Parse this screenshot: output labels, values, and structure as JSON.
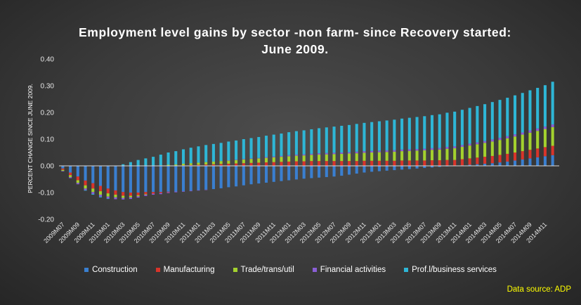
{
  "chart_data": {
    "type": "bar",
    "stacked": true,
    "title_line1": "Employment level gains by sector -non farm- since Recovery started:",
    "title_line2": "June 2009.",
    "ylabel": "PERCENT CHANGE SINCE JUNE 2009.",
    "ylim": [
      -0.2,
      0.4
    ],
    "yticks": [
      "0.40",
      "0.30",
      "0.20",
      "0.10",
      "0.00",
      "-0.10",
      "-0.20"
    ],
    "xtick_labels": [
      "2009M07",
      "2009M09",
      "2009M11",
      "2010M01",
      "2010M03",
      "2010M05",
      "2010M07",
      "2010M09",
      "2010M11",
      "2011M01",
      "2011M03",
      "2011M05",
      "2011M07",
      "2011M09",
      "2011M11",
      "2012M01",
      "2012M03",
      "2012M05",
      "2012M07",
      "2012M09",
      "2012M11",
      "2013M01",
      "2013M03",
      "2013M05",
      "2013M07",
      "2013M09",
      "2013M11",
      "2014M01",
      "2014M03",
      "2014M05",
      "2014M07",
      "2014M09",
      "2014M11"
    ],
    "categories": [
      "2009M07",
      "2009M08",
      "2009M09",
      "2009M10",
      "2009M11",
      "2009M12",
      "2010M01",
      "2010M02",
      "2010M03",
      "2010M04",
      "2010M05",
      "2010M06",
      "2010M07",
      "2010M08",
      "2010M09",
      "2010M10",
      "2010M11",
      "2010M12",
      "2011M01",
      "2011M02",
      "2011M03",
      "2011M04",
      "2011M05",
      "2011M06",
      "2011M07",
      "2011M08",
      "2011M09",
      "2011M10",
      "2011M11",
      "2011M12",
      "2012M01",
      "2012M02",
      "2012M03",
      "2012M04",
      "2012M05",
      "2012M06",
      "2012M07",
      "2012M08",
      "2012M09",
      "2012M10",
      "2012M11",
      "2012M12",
      "2013M01",
      "2013M02",
      "2013M03",
      "2013M04",
      "2013M05",
      "2013M06",
      "2013M07",
      "2013M08",
      "2013M09",
      "2013M10",
      "2013M11",
      "2013M12",
      "2014M01",
      "2014M02",
      "2014M03",
      "2014M04",
      "2014M05",
      "2014M06",
      "2014M07",
      "2014M08",
      "2014M09",
      "2014M10",
      "2014M11",
      "2014M12"
    ],
    "series": [
      {
        "name": "Construction",
        "color": "#3a7fd0",
        "values": [
          -0.01,
          -0.025,
          -0.04,
          -0.055,
          -0.065,
          -0.075,
          -0.085,
          -0.092,
          -0.098,
          -0.1,
          -0.1,
          -0.098,
          -0.098,
          -0.098,
          -0.097,
          -0.096,
          -0.095,
          -0.093,
          -0.091,
          -0.089,
          -0.087,
          -0.084,
          -0.08,
          -0.077,
          -0.073,
          -0.069,
          -0.066,
          -0.063,
          -0.06,
          -0.057,
          -0.054,
          -0.051,
          -0.048,
          -0.046,
          -0.044,
          -0.042,
          -0.04,
          -0.037,
          -0.033,
          -0.029,
          -0.025,
          -0.022,
          -0.02,
          -0.018,
          -0.016,
          -0.014,
          -0.012,
          -0.01,
          -0.008,
          -0.006,
          -0.004,
          -0.002,
          0.0,
          0.002,
          0.004,
          0.006,
          0.008,
          0.01,
          0.013,
          0.016,
          0.02,
          0.024,
          0.028,
          0.032,
          0.036,
          0.04
        ]
      },
      {
        "name": "Manufacturing",
        "color": "#d8342a",
        "values": [
          -0.005,
          -0.01,
          -0.014,
          -0.018,
          -0.02,
          -0.02,
          -0.018,
          -0.016,
          -0.014,
          -0.012,
          -0.01,
          -0.008,
          -0.006,
          -0.004,
          -0.002,
          0.0,
          0.002,
          0.003,
          0.004,
          0.005,
          0.006,
          0.007,
          0.008,
          0.009,
          0.01,
          0.011,
          0.012,
          0.013,
          0.014,
          0.015,
          0.016,
          0.017,
          0.017,
          0.018,
          0.018,
          0.018,
          0.018,
          0.018,
          0.018,
          0.018,
          0.019,
          0.019,
          0.019,
          0.019,
          0.019,
          0.02,
          0.02,
          0.02,
          0.02,
          0.021,
          0.021,
          0.022,
          0.022,
          0.023,
          0.024,
          0.025,
          0.026,
          0.027,
          0.028,
          0.029,
          0.03,
          0.031,
          0.032,
          0.033,
          0.034,
          0.035
        ]
      },
      {
        "name": "Trade/trans/util",
        "color": "#a3d12e",
        "values": [
          -0.004,
          -0.007,
          -0.01,
          -0.012,
          -0.013,
          -0.013,
          -0.012,
          -0.01,
          -0.008,
          -0.006,
          -0.004,
          -0.002,
          0.0,
          0.002,
          0.004,
          0.005,
          0.006,
          0.007,
          0.008,
          0.009,
          0.01,
          0.011,
          0.012,
          0.013,
          0.014,
          0.015,
          0.016,
          0.017,
          0.018,
          0.019,
          0.02,
          0.021,
          0.022,
          0.023,
          0.024,
          0.025,
          0.026,
          0.027,
          0.028,
          0.029,
          0.03,
          0.031,
          0.032,
          0.033,
          0.034,
          0.035,
          0.036,
          0.037,
          0.038,
          0.039,
          0.04,
          0.042,
          0.044,
          0.046,
          0.048,
          0.05,
          0.052,
          0.054,
          0.056,
          0.058,
          0.06,
          0.062,
          0.064,
          0.066,
          0.068,
          0.07
        ]
      },
      {
        "name": "Financial activities",
        "color": "#8a5fd6",
        "values": [
          -0.002,
          -0.004,
          -0.005,
          -0.006,
          -0.007,
          -0.007,
          -0.007,
          -0.007,
          -0.006,
          -0.006,
          -0.005,
          -0.005,
          -0.004,
          -0.004,
          -0.003,
          -0.003,
          -0.002,
          -0.002,
          -0.001,
          -0.001,
          0.0,
          0.0,
          0.001,
          0.001,
          0.002,
          0.002,
          0.002,
          0.003,
          0.003,
          0.003,
          0.004,
          0.004,
          0.004,
          0.004,
          0.005,
          0.005,
          0.005,
          0.005,
          0.005,
          0.006,
          0.006,
          0.006,
          0.006,
          0.006,
          0.006,
          0.006,
          0.006,
          0.006,
          0.006,
          0.006,
          0.006,
          0.007,
          0.007,
          0.007,
          0.007,
          0.007,
          0.007,
          0.008,
          0.008,
          0.008,
          0.008,
          0.008,
          0.009,
          0.009,
          0.009,
          0.01
        ]
      },
      {
        "name": "Prof.l/business services",
        "color": "#2eb6d6",
        "values": [
          0.0,
          0.0,
          0.0,
          -0.002,
          -0.003,
          -0.003,
          -0.002,
          0.0,
          0.006,
          0.014,
          0.022,
          0.028,
          0.034,
          0.04,
          0.046,
          0.05,
          0.054,
          0.058,
          0.061,
          0.064,
          0.066,
          0.068,
          0.07,
          0.072,
          0.074,
          0.076,
          0.078,
          0.08,
          0.082,
          0.084,
          0.086,
          0.088,
          0.09,
          0.092,
          0.094,
          0.096,
          0.098,
          0.1,
          0.102,
          0.104,
          0.106,
          0.108,
          0.11,
          0.112,
          0.114,
          0.116,
          0.118,
          0.12,
          0.122,
          0.124,
          0.126,
          0.128,
          0.13,
          0.132,
          0.134,
          0.136,
          0.138,
          0.14,
          0.142,
          0.144,
          0.146,
          0.148,
          0.15,
          0.152,
          0.155,
          0.16
        ]
      }
    ],
    "legend_position": "bottom",
    "grid": false
  },
  "source_note": "Data source: ADP"
}
